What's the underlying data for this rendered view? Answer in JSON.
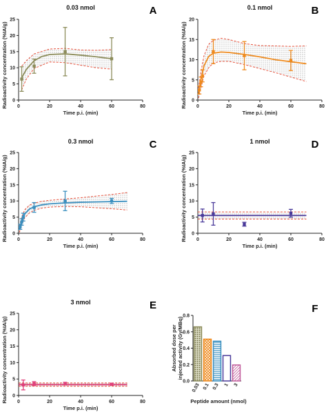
{
  "chart_data": [
    {
      "panel_label": "A",
      "type": "line",
      "title": "0.03 nmol",
      "xlabel": "Time p.i. (min)",
      "ylabel": "Radioactivity concentration (%IA/g)",
      "xlim": [
        0,
        80
      ],
      "ylim": [
        0,
        25
      ],
      "xticks": [
        "0",
        "20",
        "40",
        "60",
        "80"
      ],
      "yticks": [
        "0",
        "5",
        "10",
        "15",
        "20",
        "25"
      ],
      "color": "#8c8c5a",
      "points": [
        {
          "x": 2,
          "y": 6.5,
          "err": 3.8
        },
        {
          "x": 10,
          "y": 10.5,
          "err": 2.2
        },
        {
          "x": 30,
          "y": 15,
          "err": 7.5
        },
        {
          "x": 60,
          "y": 12.8,
          "err": 6.5
        }
      ],
      "fit": [
        [
          2,
          6.9
        ],
        [
          5,
          9.5
        ],
        [
          10,
          12.2
        ],
        [
          15,
          13.5
        ],
        [
          20,
          14.1
        ],
        [
          30,
          14.3
        ],
        [
          40,
          13.9
        ],
        [
          50,
          13.4
        ],
        [
          60,
          12.8
        ]
      ],
      "band_upper": [
        [
          2,
          10.5
        ],
        [
          5,
          12.2
        ],
        [
          10,
          14.3
        ],
        [
          20,
          15.8
        ],
        [
          30,
          16.0
        ],
        [
          40,
          15.5
        ],
        [
          50,
          15.4
        ],
        [
          60,
          15.6
        ]
      ],
      "band_lower": [
        [
          2,
          3.2
        ],
        [
          5,
          6.5
        ],
        [
          10,
          9.8
        ],
        [
          20,
          11.8
        ],
        [
          30,
          11.6
        ],
        [
          40,
          10.8
        ],
        [
          50,
          10.0
        ],
        [
          60,
          9.6
        ]
      ]
    },
    {
      "panel_label": "B",
      "type": "line",
      "title": "0.1 nmol",
      "xlabel": "Time p.i. (min)",
      "ylabel": "Radioactivity concentration (%IA/g)",
      "xlim": [
        0,
        80
      ],
      "ylim": [
        0,
        20
      ],
      "xticks": [
        "0",
        "20",
        "40",
        "60",
        "80"
      ],
      "yticks": [
        "0",
        "5",
        "10",
        "15",
        "20"
      ],
      "color": "#ee8a1e",
      "points": [
        {
          "x": 1,
          "y": 2.5,
          "err": 1.0
        },
        {
          "x": 2,
          "y": 4.5,
          "err": 1.2
        },
        {
          "x": 3,
          "y": 6.0,
          "err": 1.5
        },
        {
          "x": 10,
          "y": 12.0,
          "err": 3.0
        },
        {
          "x": 30,
          "y": 11.0,
          "err": 3.5
        },
        {
          "x": 60,
          "y": 9.8,
          "err": 2.5
        }
      ],
      "fit": [
        [
          0.5,
          1.5
        ],
        [
          2,
          5.0
        ],
        [
          4,
          8.5
        ],
        [
          7,
          10.8
        ],
        [
          10,
          11.6
        ],
        [
          15,
          11.9
        ],
        [
          20,
          11.8
        ],
        [
          30,
          11.3
        ],
        [
          40,
          10.7
        ],
        [
          50,
          10.0
        ],
        [
          60,
          9.5
        ],
        [
          70,
          9.0
        ]
      ],
      "band_upper": [
        [
          0.5,
          3.0
        ],
        [
          2,
          7.0
        ],
        [
          4,
          11.0
        ],
        [
          7,
          13.8
        ],
        [
          10,
          14.8
        ],
        [
          15,
          15.3
        ],
        [
          20,
          15.0
        ],
        [
          30,
          14.0
        ],
        [
          40,
          13.5
        ],
        [
          50,
          13.4
        ],
        [
          60,
          13.3
        ],
        [
          70,
          13.4
        ]
      ],
      "band_lower": [
        [
          0.5,
          0.5
        ],
        [
          2,
          3.0
        ],
        [
          4,
          6.0
        ],
        [
          7,
          8.0
        ],
        [
          10,
          9.2
        ],
        [
          15,
          9.6
        ],
        [
          20,
          9.6
        ],
        [
          30,
          8.8
        ],
        [
          40,
          7.8
        ],
        [
          50,
          6.8
        ],
        [
          60,
          5.7
        ],
        [
          70,
          4.6
        ]
      ]
    },
    {
      "panel_label": "C",
      "type": "line",
      "title": "0.3 nmol",
      "xlabel": "Time p.i. (min)",
      "ylabel": "Radioactivity concentration (%IA/g)",
      "xlim": [
        0,
        80
      ],
      "ylim": [
        0,
        25
      ],
      "xticks": [
        "0",
        "20",
        "40",
        "60",
        "80"
      ],
      "yticks": [
        "0",
        "5",
        "10",
        "15",
        "20",
        "25"
      ],
      "color": "#3a8fbf",
      "points": [
        {
          "x": 1,
          "y": 2.0,
          "err": 0.8
        },
        {
          "x": 2,
          "y": 3.5,
          "err": 1.0
        },
        {
          "x": 3,
          "y": 5.0,
          "err": 1.2
        },
        {
          "x": 10,
          "y": 8.0,
          "err": 1.5
        },
        {
          "x": 30,
          "y": 10.0,
          "err": 3.0
        },
        {
          "x": 60,
          "y": 10.0,
          "err": 0.8
        }
      ],
      "fit": [
        [
          0.5,
          1.2
        ],
        [
          2,
          3.8
        ],
        [
          4,
          6.0
        ],
        [
          7,
          7.5
        ],
        [
          10,
          8.2
        ],
        [
          15,
          8.8
        ],
        [
          20,
          9.1
        ],
        [
          30,
          9.4
        ],
        [
          40,
          9.6
        ],
        [
          50,
          9.7
        ],
        [
          60,
          9.8
        ],
        [
          70,
          9.9
        ]
      ],
      "band_upper": [
        [
          0.5,
          2.2
        ],
        [
          2,
          5.0
        ],
        [
          4,
          7.3
        ],
        [
          7,
          8.7
        ],
        [
          10,
          9.3
        ],
        [
          15,
          9.9
        ],
        [
          20,
          10.2
        ],
        [
          30,
          10.6
        ],
        [
          40,
          11.0
        ],
        [
          50,
          11.5
        ],
        [
          60,
          12.0
        ],
        [
          70,
          12.6
        ]
      ],
      "band_lower": [
        [
          0.5,
          0.3
        ],
        [
          2,
          2.6
        ],
        [
          4,
          4.8
        ],
        [
          7,
          6.3
        ],
        [
          10,
          7.1
        ],
        [
          15,
          7.8
        ],
        [
          20,
          8.1
        ],
        [
          30,
          8.3
        ],
        [
          40,
          8.2
        ],
        [
          50,
          7.9
        ],
        [
          60,
          7.6
        ],
        [
          70,
          7.2
        ]
      ]
    },
    {
      "panel_label": "D",
      "type": "line",
      "title": "1 nmol",
      "xlabel": "Time p.i. (min)",
      "ylabel": "Radioactivity concentration (%IA/g)",
      "xlim": [
        0,
        80
      ],
      "ylim": [
        0,
        25
      ],
      "xticks": [
        "0",
        "20",
        "40",
        "60",
        "80"
      ],
      "yticks": [
        "0",
        "5",
        "10",
        "15",
        "20",
        "25"
      ],
      "color": "#4a3a9a",
      "points": [
        {
          "x": 3,
          "y": 5.5,
          "err": 2.0
        },
        {
          "x": 10,
          "y": 6.0,
          "err": 3.5
        },
        {
          "x": 30,
          "y": 2.8,
          "err": 0.6
        },
        {
          "x": 60,
          "y": 6.2,
          "err": 1.2
        }
      ],
      "fit": [
        [
          0,
          5.5
        ],
        [
          70,
          5.5
        ]
      ],
      "band_upper": [
        [
          0,
          6.6
        ],
        [
          70,
          6.6
        ]
      ],
      "band_lower": [
        [
          0,
          4.4
        ],
        [
          70,
          4.4
        ]
      ]
    },
    {
      "panel_label": "E",
      "type": "line",
      "title": "3 nmol",
      "xlabel": "Time p.i. (min)",
      "ylabel": "Radioactivity concentration (%IA/g)",
      "xlim": [
        0,
        80
      ],
      "ylim": [
        0,
        25
      ],
      "xticks": [
        "0",
        "20",
        "40",
        "60",
        "80"
      ],
      "yticks": [
        "0",
        "5",
        "10",
        "15",
        "20",
        "25"
      ],
      "color": "#e0407a",
      "points": [
        {
          "x": 3,
          "y": 3.2,
          "err": 1.5
        },
        {
          "x": 10,
          "y": 3.6,
          "err": 0.6
        },
        {
          "x": 30,
          "y": 3.6,
          "err": 0.4
        },
        {
          "x": 60,
          "y": 3.4,
          "err": 0.3
        }
      ],
      "fit": [
        [
          0,
          3.3
        ],
        [
          70,
          3.3
        ]
      ],
      "band_upper": [
        [
          0,
          3.8
        ],
        [
          70,
          3.8
        ]
      ],
      "band_lower": [
        [
          0,
          2.8
        ],
        [
          70,
          2.8
        ]
      ]
    },
    {
      "panel_label": "F",
      "type": "bar",
      "title": "",
      "xlabel": "Peptide amount (nmol)",
      "ylabel": "Absorbed dose per injected activity (Gy/MBq)",
      "ylim": [
        0,
        0.8
      ],
      "yticks": [
        "0.0",
        "0.2",
        "0.4",
        "0.6",
        "0.8"
      ],
      "categories": [
        "0.03",
        "0.1",
        "0.3",
        "1",
        "3"
      ],
      "values": [
        0.66,
        0.51,
        0.485,
        0.31,
        0.195
      ],
      "colors": [
        "#8c8c5a",
        "#ee8a1e",
        "#3a8fbf",
        "#4a3a9a",
        "#c05a9a"
      ]
    }
  ]
}
